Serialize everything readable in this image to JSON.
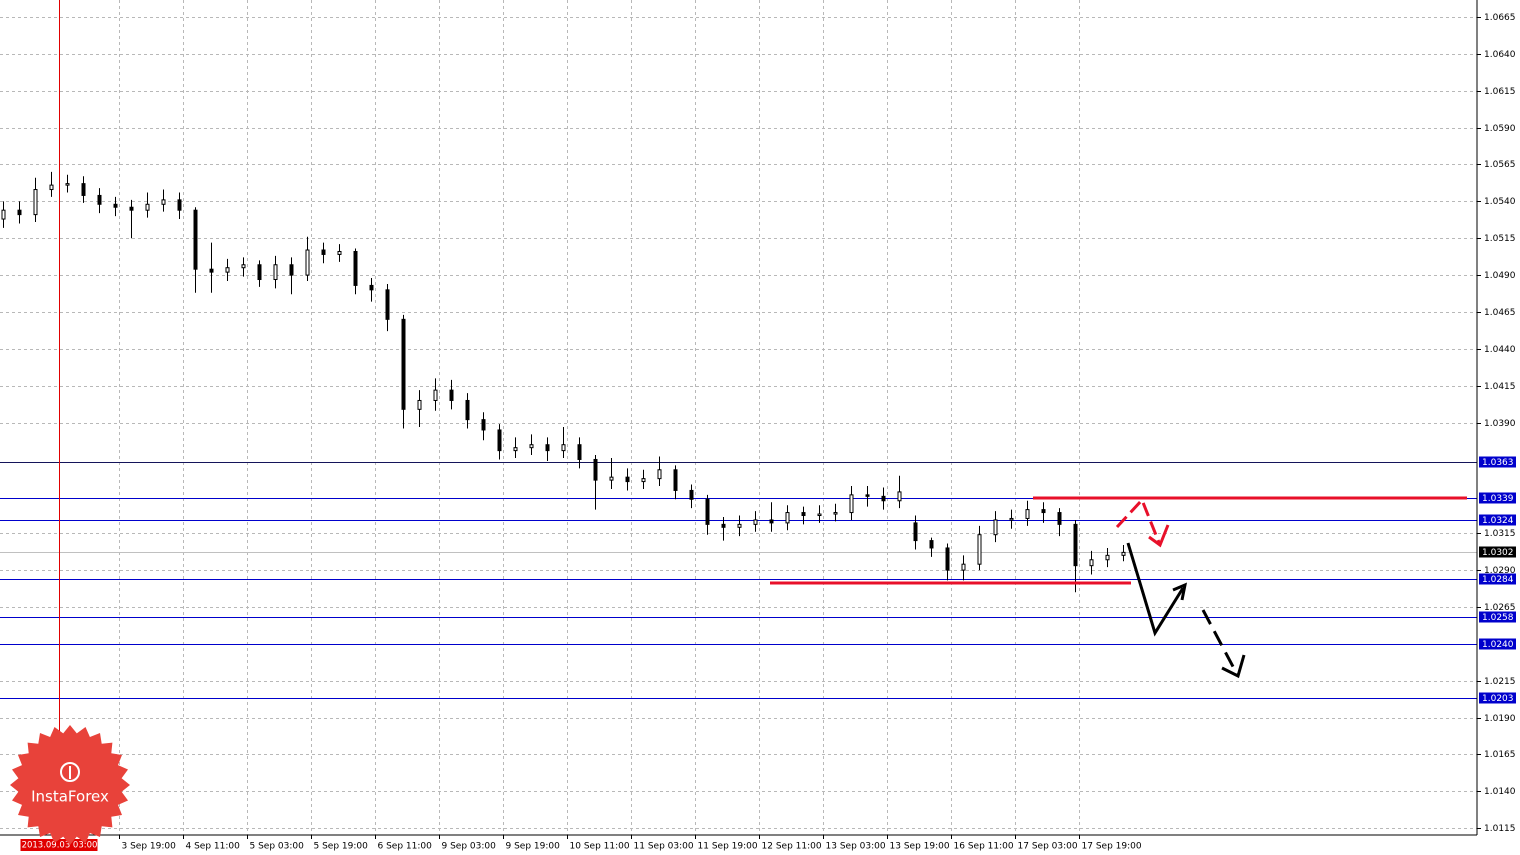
{
  "chart_data": {
    "type": "candlestick",
    "x": [
      0,
      4,
      8,
      12,
      16,
      20,
      24,
      28,
      32,
      36,
      40,
      44,
      48,
      52,
      56,
      60,
      64,
      68,
      72,
      76,
      80,
      84,
      88,
      92,
      96,
      100,
      104,
      108,
      112,
      116,
      120,
      124,
      128,
      132,
      136,
      140,
      144,
      148,
      152,
      156,
      160,
      164,
      168,
      172,
      176,
      180,
      184,
      188,
      192,
      196,
      200,
      204,
      208,
      212,
      216,
      220,
      224,
      228,
      232,
      236,
      240,
      244,
      248,
      252,
      256,
      260,
      264,
      268,
      272,
      276,
      280
    ],
    "open": [
      1.0528,
      1.0534,
      1.0531,
      1.0548,
      1.0551,
      1.0552,
      1.0544,
      1.0538,
      1.0536,
      1.0534,
      1.0538,
      1.0541,
      1.0534,
      1.0494,
      1.0492,
      1.0495,
      1.0497,
      1.0487,
      1.0497,
      1.049,
      1.0507,
      1.0504,
      1.0506,
      1.0483,
      1.048,
      1.046,
      1.0399,
      1.0405,
      1.0412,
      1.0405,
      1.0392,
      1.0385,
      1.0371,
      1.0373,
      1.0375,
      1.0371,
      1.0375,
      1.0365,
      1.0351,
      1.0353,
      1.035,
      1.0352,
      1.0358,
      1.0344,
      1.0338,
      1.0321,
      1.0319,
      1.0321,
      1.0324,
      1.0322,
      1.0329,
      1.0327,
      1.0328,
      1.0329,
      1.0341,
      1.034,
      1.0337,
      1.0322,
      1.031,
      1.0305,
      1.029,
      1.0294,
      1.0314,
      1.0324,
      1.0325,
      1.0331,
      1.0329,
      1.0321,
      1.0293,
      1.0297,
      1.03
    ],
    "high": [
      1.054,
      1.054,
      1.0556,
      1.056,
      1.0558,
      1.0557,
      1.0549,
      1.0543,
      1.0541,
      1.0546,
      1.0548,
      1.0546,
      1.0536,
      1.0512,
      1.0501,
      1.0502,
      1.05,
      1.0503,
      1.0502,
      1.0516,
      1.0512,
      1.0511,
      1.0508,
      1.0488,
      1.0484,
      1.0463,
      1.0412,
      1.042,
      1.0419,
      1.041,
      1.0397,
      1.0389,
      1.038,
      1.0382,
      1.038,
      1.0387,
      1.038,
      1.0368,
      1.0366,
      1.0359,
      1.0358,
      1.0367,
      1.0361,
      1.0348,
      1.0341,
      1.0326,
      1.0327,
      1.033,
      1.0336,
      1.0334,
      1.0333,
      1.0334,
      1.0335,
      1.0347,
      1.0347,
      1.0346,
      1.0354,
      1.0327,
      1.0312,
      1.0308,
      1.03,
      1.032,
      1.033,
      1.0331,
      1.0337,
      1.0336,
      1.0332,
      1.0324,
      1.0303,
      1.0305,
      1.0307
    ],
    "low": [
      1.0522,
      1.0525,
      1.0526,
      1.0543,
      1.0546,
      1.0539,
      1.0532,
      1.053,
      1.0515,
      1.0529,
      1.0533,
      1.0528,
      1.0478,
      1.0478,
      1.0486,
      1.0489,
      1.0482,
      1.0481,
      1.0477,
      1.0486,
      1.0498,
      1.0499,
      1.0477,
      1.0472,
      1.0452,
      1.0386,
      1.0387,
      1.0398,
      1.0399,
      1.0386,
      1.0378,
      1.0365,
      1.0366,
      1.0368,
      1.0364,
      1.0366,
      1.0359,
      1.0331,
      1.0345,
      1.0344,
      1.0345,
      1.0347,
      1.0338,
      1.0332,
      1.0314,
      1.031,
      1.0313,
      1.0316,
      1.0316,
      1.0317,
      1.0321,
      1.0322,
      1.0323,
      1.0324,
      1.0333,
      1.0331,
      1.0332,
      1.0304,
      1.0299,
      1.0283,
      1.0283,
      1.029,
      1.0309,
      1.0318,
      1.032,
      1.0322,
      1.0313,
      1.0275,
      1.0287,
      1.0292,
      1.0296
    ],
    "close": [
      1.0534,
      1.0531,
      1.0548,
      1.0551,
      1.0552,
      1.0544,
      1.0538,
      1.0536,
      1.0534,
      1.0538,
      1.0541,
      1.0534,
      1.0494,
      1.0492,
      1.0495,
      1.0497,
      1.0487,
      1.0497,
      1.049,
      1.0507,
      1.0504,
      1.0506,
      1.0483,
      1.048,
      1.046,
      1.0399,
      1.0405,
      1.0412,
      1.0405,
      1.0392,
      1.0385,
      1.0371,
      1.0373,
      1.0375,
      1.0371,
      1.0375,
      1.0365,
      1.0351,
      1.0353,
      1.035,
      1.0352,
      1.0358,
      1.0344,
      1.0338,
      1.0321,
      1.0319,
      1.0321,
      1.0324,
      1.0322,
      1.0329,
      1.0327,
      1.0328,
      1.0329,
      1.0341,
      1.034,
      1.0337,
      1.0343,
      1.031,
      1.0305,
      1.029,
      1.0294,
      1.0314,
      1.0324,
      1.0325,
      1.0331,
      1.0329,
      1.0321,
      1.0293,
      1.0297,
      1.03,
      1.0302
    ],
    "bull_color": "#ffffff",
    "bear_color": "#000000",
    "xlim": [
      -0.75,
      368.5
    ],
    "xticks": [
      {
        "value": 29,
        "label": "3 Sep 19:00"
      },
      {
        "value": 45,
        "label": "4 Sep 11:00"
      },
      {
        "value": 61,
        "label": "5 Sep 03:00"
      },
      {
        "value": 77,
        "label": "5 Sep 19:00"
      },
      {
        "value": 93,
        "label": "6 Sep 11:00"
      },
      {
        "value": 109,
        "label": "9 Sep 03:00"
      },
      {
        "value": 125,
        "label": "9 Sep 19:00"
      },
      {
        "value": 141,
        "label": "10 Sep 11:00"
      },
      {
        "value": 157,
        "label": "11 Sep 03:00"
      },
      {
        "value": 173,
        "label": "11 Sep 19:00"
      },
      {
        "value": 189,
        "label": "12 Sep 11:00"
      },
      {
        "value": 205,
        "label": "13 Sep 03:00"
      },
      {
        "value": 221,
        "label": "13 Sep 19:00"
      },
      {
        "value": 237,
        "label": "16 Sep 11:00"
      },
      {
        "value": 253,
        "label": "17 Sep 03:00"
      },
      {
        "value": 269,
        "label": "17 Sep 19:00"
      }
    ],
    "ylim": [
      1.01104,
      1.06765
    ],
    "yticks": [
      1.0665,
      {
        "value": 1.064,
        "label": "1.0640"
      },
      1.0615,
      {
        "value": 1.059,
        "label": "1.0590"
      },
      1.0565,
      {
        "value": 1.054,
        "label": "1.0540"
      },
      1.0515,
      {
        "value": 1.049,
        "label": "1.0490"
      },
      1.0465,
      {
        "value": 1.044,
        "label": "1.0440"
      },
      1.0415,
      {
        "value": 1.039,
        "label": "1.0390"
      },
      1.0315,
      {
        "value": 1.029,
        "label": "1.0290"
      },
      1.0265,
      1.0215,
      {
        "value": 1.019,
        "label": "1.0190"
      },
      1.0165,
      {
        "value": 1.014,
        "label": "1.0140"
      },
      1.0115
    ],
    "grid": true,
    "levels": [
      {
        "price": 1.0363,
        "color": "#14145a",
        "label_bg": "#0000cc"
      },
      {
        "price": 1.0339,
        "color": "#0000cc",
        "label_bg": "#0000cc"
      },
      {
        "price": 1.0324,
        "color": "#0000cc",
        "label_bg": "#0000cc"
      },
      {
        "price": 1.0302,
        "color": "#c0c0c0",
        "label_bg": "#000000"
      },
      {
        "price": 1.0284,
        "color": "#0000cc",
        "label_bg": "#0000cc"
      },
      {
        "price": 1.0258,
        "color": "#0000cc",
        "label_bg": "#0000cc"
      },
      {
        "price": {
          "value": 1.024,
          "label": "1.0240"
        },
        "color": "#0000cc",
        "label_bg": "#0000cc"
      },
      {
        "price": 1.0203,
        "color": "#0000cc",
        "label_bg": "#0000cc"
      }
    ],
    "crosshair": {
      "x": 14,
      "label": "2013.09.03 03:00",
      "color": "#e00000"
    },
    "watermark": "InstaForex"
  }
}
